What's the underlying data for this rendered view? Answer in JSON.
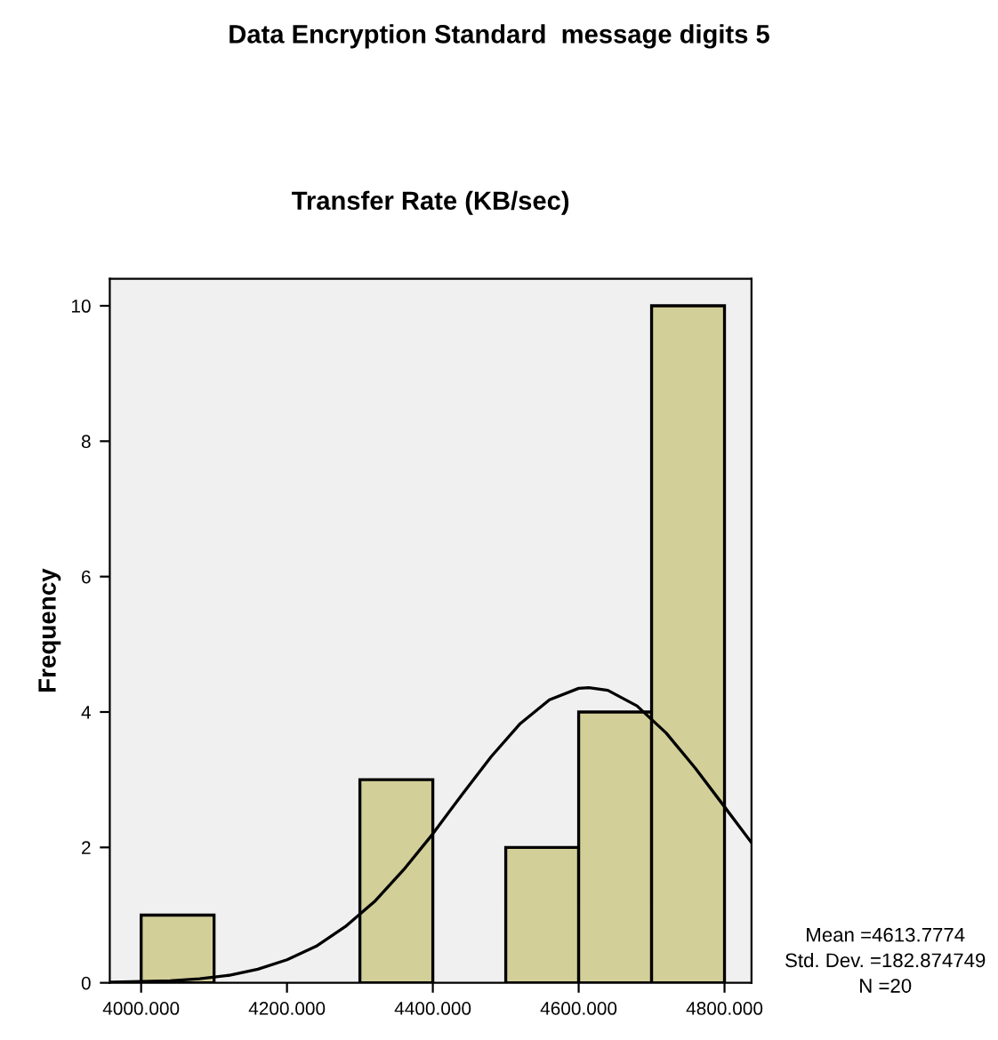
{
  "chart_data": {
    "type": "histogram",
    "title": "Data Encryption Standard  message digits 5",
    "subtitle": "Transfer Rate (KB/sec)",
    "ylabel": "Frequency",
    "bins": [
      4000,
      4100,
      4200,
      4300,
      4400,
      4500,
      4600,
      4700,
      4800
    ],
    "values": [
      1,
      0,
      0,
      3,
      0,
      2,
      4,
      10
    ],
    "color": "#d3cf98",
    "series": [
      {
        "type": "line",
        "color": "#000000",
        "x": [
          3960,
          4000,
          4040,
          4080,
          4120,
          4160,
          4200,
          4240,
          4280,
          4320,
          4360,
          4400,
          4440,
          4480,
          4520,
          4560,
          4600,
          4614,
          4640,
          4680,
          4720,
          4760,
          4800,
          4837
        ],
        "values": [
          0.01,
          0.02,
          0.03,
          0.06,
          0.11,
          0.2,
          0.34,
          0.54,
          0.83,
          1.2,
          1.67,
          2.2,
          2.78,
          3.34,
          3.83,
          4.18,
          4.35,
          4.36,
          4.32,
          4.09,
          3.69,
          3.17,
          2.6,
          2.07
        ]
      }
    ],
    "xlim": [
      3957,
      4837
    ],
    "ylim": [
      0,
      10.4
    ],
    "xticks": [
      {
        "value": 4000,
        "label": "4000.000"
      },
      {
        "value": 4200,
        "label": "4200.000"
      },
      {
        "value": 4400,
        "label": "4400.000"
      },
      {
        "value": 4600,
        "label": "4600.000"
      },
      {
        "value": 4800,
        "label": "4800.000"
      }
    ],
    "yticks": [
      0,
      2,
      4,
      6,
      8,
      10
    ],
    "grid": false,
    "marker": "none",
    "line_style": "solid",
    "annotations": [
      "Mean =4613.7774",
      "Std. Dev. =182.874749",
      "N =20"
    ]
  }
}
